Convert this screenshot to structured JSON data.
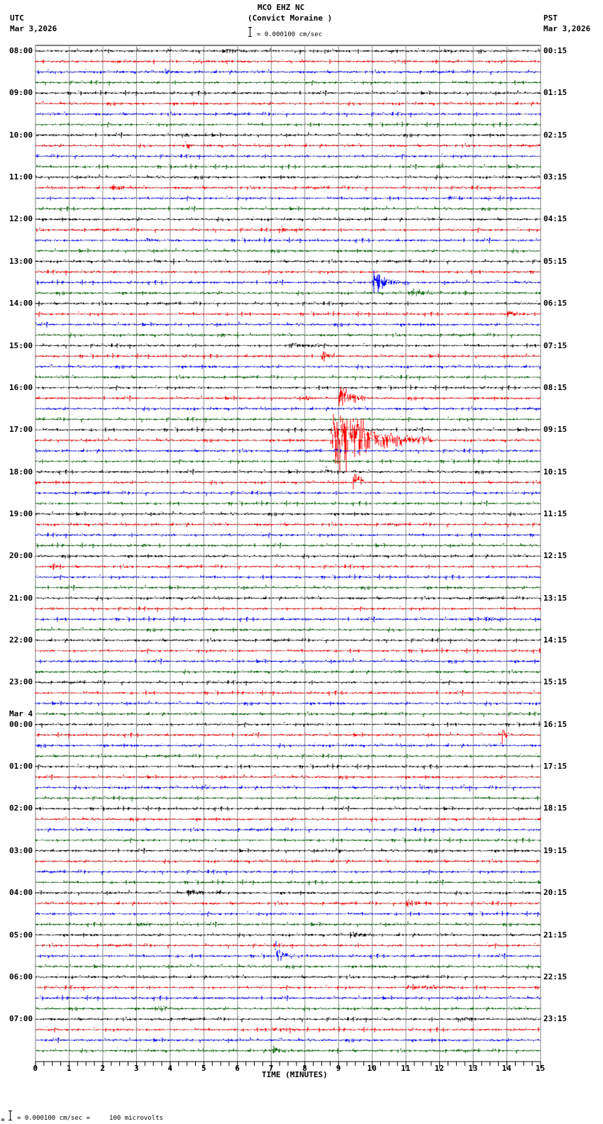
{
  "header": {
    "station": "MCO EHZ NC",
    "location": "(Convict Moraine )",
    "left_tz": "UTC",
    "left_date": "Mar 3,2026",
    "right_tz": "PST",
    "right_date": "Mar 3,2026",
    "scale_text": "= 0.000100 cm/sec"
  },
  "footer": {
    "scale_text": "= 0.000100 cm/sec =     100 microvolts",
    "prefix": "ᴍ"
  },
  "colors": {
    "trace_cycle": [
      "#000000",
      "#ff0000",
      "#0000ff",
      "#006400"
    ],
    "grid": "#808080"
  },
  "chart_data": {
    "type": "line",
    "title": "MCO EHZ NC (Convict Moraine )",
    "xlabel": "TIME (MINUTES)",
    "ylabel": "",
    "xlim": [
      0,
      15
    ],
    "x_ticks": [
      "0",
      "1",
      "2",
      "3",
      "4",
      "5",
      "6",
      "7",
      "8",
      "9",
      "10",
      "11",
      "12",
      "13",
      "14",
      "15"
    ],
    "rows_per_hour": 4,
    "row_minutes": 15,
    "total_rows": 96,
    "left_labels": [
      {
        "row": 0,
        "text": "08:00"
      },
      {
        "row": 4,
        "text": "09:00"
      },
      {
        "row": 8,
        "text": "10:00"
      },
      {
        "row": 12,
        "text": "11:00"
      },
      {
        "row": 16,
        "text": "12:00"
      },
      {
        "row": 20,
        "text": "13:00"
      },
      {
        "row": 24,
        "text": "14:00"
      },
      {
        "row": 28,
        "text": "15:00"
      },
      {
        "row": 32,
        "text": "16:00"
      },
      {
        "row": 36,
        "text": "17:00"
      },
      {
        "row": 40,
        "text": "18:00"
      },
      {
        "row": 44,
        "text": "19:00"
      },
      {
        "row": 48,
        "text": "20:00"
      },
      {
        "row": 52,
        "text": "21:00"
      },
      {
        "row": 56,
        "text": "22:00"
      },
      {
        "row": 60,
        "text": "23:00"
      },
      {
        "row": 64,
        "text": "00:00",
        "date": "Mar 4"
      },
      {
        "row": 68,
        "text": "01:00"
      },
      {
        "row": 72,
        "text": "02:00"
      },
      {
        "row": 76,
        "text": "03:00"
      },
      {
        "row": 80,
        "text": "04:00"
      },
      {
        "row": 84,
        "text": "05:00"
      },
      {
        "row": 88,
        "text": "06:00"
      },
      {
        "row": 92,
        "text": "07:00"
      }
    ],
    "right_labels": [
      {
        "row": 0,
        "text": "00:15"
      },
      {
        "row": 4,
        "text": "01:15"
      },
      {
        "row": 8,
        "text": "02:15"
      },
      {
        "row": 12,
        "text": "03:15"
      },
      {
        "row": 16,
        "text": "04:15"
      },
      {
        "row": 20,
        "text": "05:15"
      },
      {
        "row": 24,
        "text": "06:15"
      },
      {
        "row": 28,
        "text": "07:15"
      },
      {
        "row": 32,
        "text": "08:15"
      },
      {
        "row": 36,
        "text": "09:15"
      },
      {
        "row": 40,
        "text": "10:15"
      },
      {
        "row": 44,
        "text": "11:15"
      },
      {
        "row": 48,
        "text": "12:15"
      },
      {
        "row": 52,
        "text": "13:15"
      },
      {
        "row": 56,
        "text": "14:15"
      },
      {
        "row": 60,
        "text": "15:15"
      },
      {
        "row": 64,
        "text": "16:15"
      },
      {
        "row": 68,
        "text": "17:15"
      },
      {
        "row": 72,
        "text": "18:15"
      },
      {
        "row": 76,
        "text": "19:15"
      },
      {
        "row": 80,
        "text": "20:15"
      },
      {
        "row": 84,
        "text": "21:15"
      },
      {
        "row": 88,
        "text": "22:15"
      },
      {
        "row": 92,
        "text": "23:15"
      }
    ],
    "events": [
      {
        "row": 0,
        "minute": 5.5,
        "amp": 4,
        "dur": 1.5
      },
      {
        "row": 2,
        "minute": 3.8,
        "amp": 6,
        "dur": 0.4
      },
      {
        "row": 8,
        "minute": 4.3,
        "amp": 5,
        "dur": 0.6
      },
      {
        "row": 9,
        "minute": 4.45,
        "amp": 12,
        "dur": 0.3
      },
      {
        "row": 11,
        "minute": 11.9,
        "amp": 6,
        "dur": 0.3
      },
      {
        "row": 13,
        "minute": 2.2,
        "amp": 5,
        "dur": 1.0
      },
      {
        "row": 14,
        "minute": 12.3,
        "amp": 5,
        "dur": 0.8
      },
      {
        "row": 17,
        "minute": 7.3,
        "amp": 6,
        "dur": 0.5
      },
      {
        "row": 18,
        "minute": 3.3,
        "amp": 5,
        "dur": 0.3
      },
      {
        "row": 20,
        "minute": 3.5,
        "amp": 5,
        "dur": 0.4
      },
      {
        "row": 22,
        "minute": 10.0,
        "amp": 22,
        "dur": 1.0
      },
      {
        "row": 23,
        "minute": 11.0,
        "amp": 5,
        "dur": 2.0
      },
      {
        "row": 25,
        "minute": 14.0,
        "amp": 6,
        "dur": 0.6
      },
      {
        "row": 27,
        "minute": 5.5,
        "amp": 5,
        "dur": 0.3
      },
      {
        "row": 28,
        "minute": 7.5,
        "amp": 5,
        "dur": 1.0
      },
      {
        "row": 29,
        "minute": 8.5,
        "amp": 12,
        "dur": 0.4
      },
      {
        "row": 33,
        "minute": 8.0,
        "amp": 6,
        "dur": 0.4
      },
      {
        "row": 33,
        "minute": 9.0,
        "amp": 45,
        "dur": 0.8
      },
      {
        "row": 37,
        "minute": 8.75,
        "amp": 75,
        "dur": 3.0
      },
      {
        "row": 40,
        "minute": 8.6,
        "amp": 5,
        "dur": 0.6
      },
      {
        "row": 41,
        "minute": 9.4,
        "amp": 60,
        "dur": 0.4
      },
      {
        "row": 47,
        "minute": 3.2,
        "amp": 4,
        "dur": 0.3
      },
      {
        "row": 49,
        "minute": 0.5,
        "amp": 5,
        "dur": 0.2
      },
      {
        "row": 53,
        "minute": 0.45,
        "amp": 6,
        "dur": 0.2
      },
      {
        "row": 54,
        "minute": 13.3,
        "amp": 5,
        "dur": 1.0
      },
      {
        "row": 65,
        "minute": 13.85,
        "amp": 18,
        "dur": 0.3
      },
      {
        "row": 70,
        "minute": 4.9,
        "amp": 5,
        "dur": 0.3
      },
      {
        "row": 70,
        "minute": 11.4,
        "amp": 5,
        "dur": 0.4
      },
      {
        "row": 76,
        "minute": 9.0,
        "amp": 5,
        "dur": 0.4
      },
      {
        "row": 80,
        "minute": 4.5,
        "amp": 6,
        "dur": 1.2
      },
      {
        "row": 81,
        "minute": 11.0,
        "amp": 9,
        "dur": 0.8
      },
      {
        "row": 83,
        "minute": 3.0,
        "amp": 5,
        "dur": 0.6
      },
      {
        "row": 84,
        "minute": 9.3,
        "amp": 6,
        "dur": 1.0
      },
      {
        "row": 86,
        "minute": 7.1,
        "amp": 25,
        "dur": 0.6
      },
      {
        "row": 89,
        "minute": 11.0,
        "amp": 5,
        "dur": 1.5
      },
      {
        "row": 91,
        "minute": 3.6,
        "amp": 6,
        "dur": 0.8
      },
      {
        "row": 92,
        "minute": 12.5,
        "amp": 5,
        "dur": 1.0
      },
      {
        "row": 93,
        "minute": 7.0,
        "amp": 5,
        "dur": 1.2
      },
      {
        "row": 95,
        "minute": 7.0,
        "amp": 7,
        "dur": 1.0
      }
    ]
  }
}
